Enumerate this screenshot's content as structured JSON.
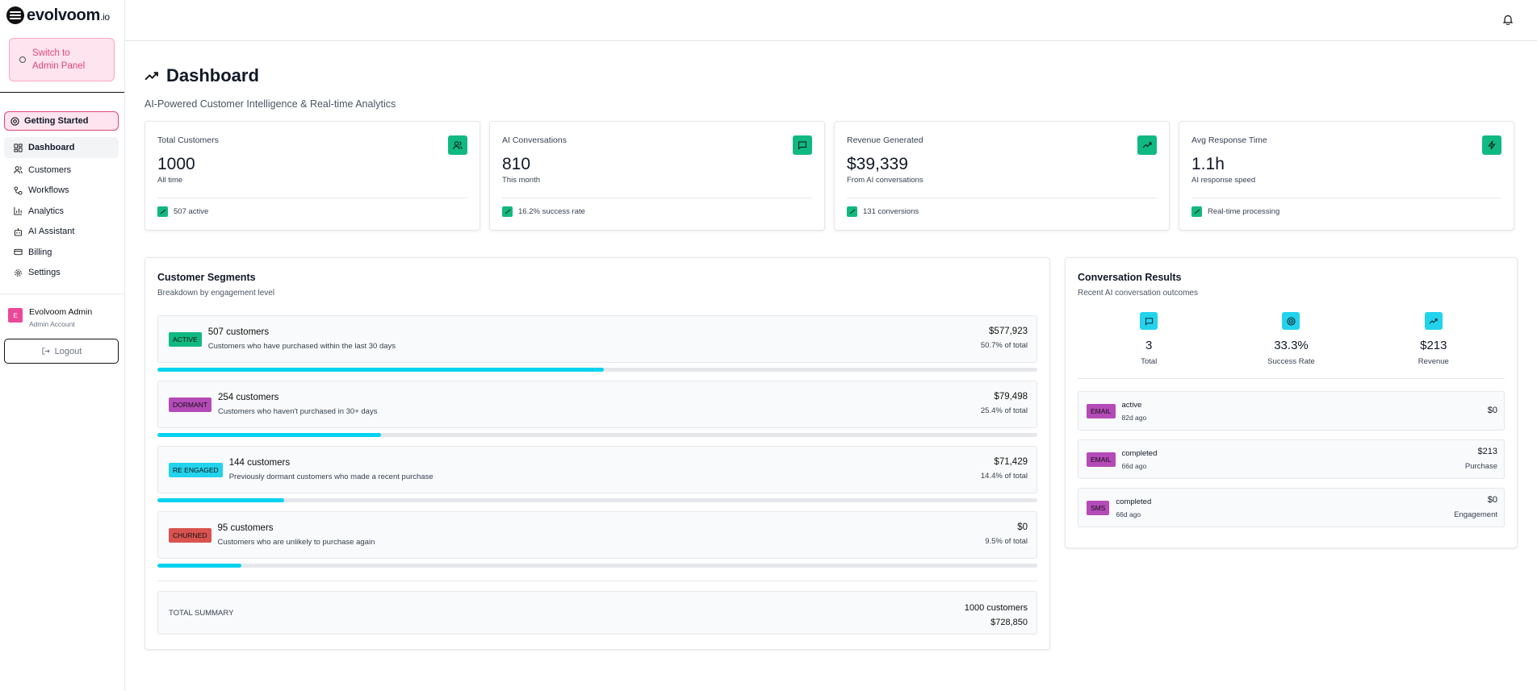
{
  "brand": {
    "name": "evolvoom",
    "suffix": ".io"
  },
  "sidebar": {
    "admin_switch": "Switch to Admin Panel",
    "getting_started": "Getting Started",
    "items": [
      {
        "label": "Dashboard",
        "icon": "dashboard-icon",
        "active": true
      },
      {
        "label": "Customers",
        "icon": "users-icon"
      },
      {
        "label": "Workflows",
        "icon": "workflow-icon"
      },
      {
        "label": "Analytics",
        "icon": "bar-chart-icon"
      },
      {
        "label": "AI Assistant",
        "icon": "bot-icon"
      },
      {
        "label": "Billing",
        "icon": "credit-card-icon"
      },
      {
        "label": "Settings",
        "icon": "gear-icon"
      }
    ],
    "user": {
      "initial": "E",
      "name": "Evolvoom Admin",
      "role": "Admin Account"
    },
    "logout": "Logout"
  },
  "page": {
    "title": "Dashboard",
    "subtitle": "AI-Powered Customer Intelligence & Real-time Analytics"
  },
  "cards": [
    {
      "label": "Total Customers",
      "value": "1000",
      "sub": "All time",
      "foot": "507 active",
      "icon": "users-icon"
    },
    {
      "label": "AI Conversations",
      "value": "810",
      "sub": "This month",
      "foot": "16.2% success rate",
      "icon": "message-icon"
    },
    {
      "label": "Revenue Generated",
      "value": "$39,339",
      "sub": "From AI conversations",
      "foot": "131 conversions",
      "icon": "trend-up-icon"
    },
    {
      "label": "Avg Response Time",
      "value": "1.1h",
      "sub": "AI response speed",
      "foot": "Real-time processing",
      "icon": "lightning-icon"
    }
  ],
  "segments": {
    "title": "Customer Segments",
    "subtitle": "Breakdown by engagement level",
    "rows": [
      {
        "badge": "ACTIVE",
        "color": "#10b981",
        "count": "507 customers",
        "desc": "Customers who have purchased within the last 30 days",
        "value": "$577,923",
        "pct": "50.7% of total",
        "fraction": 0.507
      },
      {
        "badge": "DORMANT",
        "color": "#b44bb8",
        "count": "254 customers",
        "desc": "Customers who haven't purchased in 30+ days",
        "value": "$79,498",
        "pct": "25.4% of total",
        "fraction": 0.254
      },
      {
        "badge": "RE ENGAGED",
        "color": "#22d3ee",
        "count": "144 customers",
        "desc": "Previously dormant customers who made a recent purchase",
        "value": "$71,429",
        "pct": "14.4% of total",
        "fraction": 0.144
      },
      {
        "badge": "CHURNED",
        "color": "#d9534f",
        "count": "95 customers",
        "desc": "Customers who are unlikely to purchase again",
        "value": "$0",
        "pct": "9.5% of total",
        "fraction": 0.095
      }
    ],
    "summary": {
      "label": "TOTAL SUMMARY",
      "customers": "1000 customers",
      "value": "$728,850"
    }
  },
  "conversations": {
    "title": "Conversation Results",
    "subtitle": "Recent AI conversation outcomes",
    "stats": [
      {
        "value": "3",
        "label": "Total",
        "icon": "message-icon"
      },
      {
        "value": "33.3%",
        "label": "Success Rate",
        "icon": "target-icon"
      },
      {
        "value": "$213",
        "label": "Revenue",
        "icon": "trend-up-icon"
      }
    ],
    "rows": [
      {
        "channel": "EMAIL",
        "status": "active",
        "time": "82d ago",
        "amount": "$0",
        "type": ""
      },
      {
        "channel": "EMAIL",
        "status": "completed",
        "time": "66d ago",
        "amount": "$213",
        "type": "Purchase"
      },
      {
        "channel": "SMS",
        "status": "completed",
        "time": "66d ago",
        "amount": "$0",
        "type": "Engagement"
      }
    ]
  }
}
